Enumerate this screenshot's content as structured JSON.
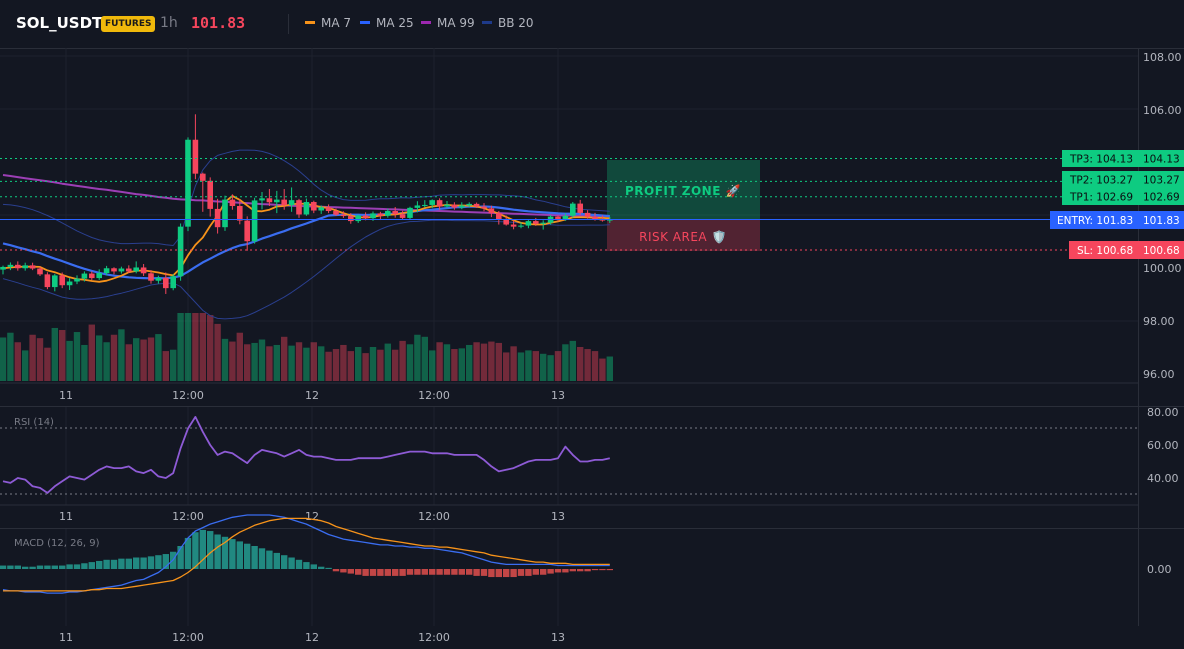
{
  "header": {
    "symbol": "SOL_USDT",
    "badge": "FUTURES",
    "timeframe": "1h",
    "price": "101.83",
    "legend": [
      {
        "label": "MA 7",
        "color": "#f7931a"
      },
      {
        "label": "MA 25",
        "color": "#2962ff"
      },
      {
        "label": "MA 99",
        "color": "#9c27b0"
      },
      {
        "label": "BB 20",
        "color": "#1e3a8a"
      }
    ]
  },
  "colors": {
    "up": "#0ecb81",
    "down": "#f6465d",
    "ma7": "#f7931a",
    "ma25": "#3a6df0",
    "ma99": "#9c3fb5",
    "bb": "#2a3f8f",
    "rsi": "#8e5bd6",
    "macd": "#3a6df0",
    "signal": "#f7931a",
    "entry": "#2962ff"
  },
  "main_chart": {
    "y_ticks": [
      "108.00",
      "106.00",
      "100.00",
      "98.00",
      "96.00"
    ],
    "x_ticks": [
      "11",
      "12:00",
      "12",
      "12:00",
      "13"
    ],
    "levels": [
      {
        "label": "TP3: 104.13",
        "value": "104.13",
        "price": 104.13,
        "color": "#0ecb81",
        "text_color": "#0b0e11"
      },
      {
        "label": "TP2: 103.27",
        "value": "103.27",
        "price": 103.27,
        "color": "#0ecb81",
        "text_color": "#0b0e11"
      },
      {
        "label": "TP1: 102.69",
        "value": "102.69",
        "price": 102.69,
        "color": "#0ecb81",
        "text_color": "#0b0e11"
      },
      {
        "label": "ENTRY: 101.83",
        "value": "101.83",
        "price": 101.83,
        "color": "#2962ff",
        "text_color": "#ffffff"
      },
      {
        "label": "SL: 100.68",
        "value": "100.68",
        "price": 100.68,
        "color": "#f6465d",
        "text_color": "#ffffff"
      }
    ],
    "profit_zone_label": "PROFIT ZONE 🚀",
    "risk_area_label": "RISK AREA 🛡️"
  },
  "rsi_panel": {
    "label": "RSI (14)",
    "y_ticks": [
      "80.00",
      "60.00",
      "40.00"
    ],
    "x_ticks": [
      "11",
      "12:00",
      "12",
      "12:00",
      "13"
    ]
  },
  "macd_panel": {
    "label": "MACD (12, 26, 9)",
    "y_ticks": [
      "0.00"
    ],
    "x_ticks": [
      "11",
      "12:00",
      "12",
      "12:00",
      "13"
    ]
  },
  "chart_data": {
    "type": "candlestick",
    "candles": [
      [
        99.94,
        100.09,
        99.76,
        100.04
      ],
      [
        100.04,
        100.21,
        99.92,
        100.12
      ],
      [
        100.12,
        100.25,
        99.9,
        99.99
      ],
      [
        99.99,
        100.2,
        99.9,
        100.1
      ],
      [
        100.1,
        100.2,
        99.92,
        99.98
      ],
      [
        99.98,
        100.05,
        99.7,
        99.76
      ],
      [
        99.76,
        99.84,
        99.2,
        99.28
      ],
      [
        99.28,
        99.78,
        99.12,
        99.72
      ],
      [
        99.72,
        99.83,
        99.24,
        99.35
      ],
      [
        99.35,
        99.62,
        99.17,
        99.49
      ],
      [
        99.49,
        99.72,
        99.39,
        99.6
      ],
      [
        99.6,
        99.87,
        99.49,
        99.79
      ],
      [
        99.79,
        99.87,
        99.54,
        99.62
      ],
      [
        99.62,
        99.95,
        99.55,
        99.81
      ],
      [
        99.81,
        100.08,
        99.72,
        99.99
      ],
      [
        99.99,
        100.03,
        99.76,
        99.87
      ],
      [
        99.87,
        100.05,
        99.79,
        99.98
      ],
      [
        99.98,
        100.1,
        99.81,
        99.87
      ],
      [
        99.87,
        100.25,
        99.8,
        100.02
      ],
      [
        100.02,
        100.15,
        99.7,
        99.8
      ],
      [
        99.8,
        99.92,
        99.41,
        99.52
      ],
      [
        99.52,
        99.71,
        99.41,
        99.63
      ],
      [
        99.63,
        99.83,
        99.02,
        99.24
      ],
      [
        99.24,
        99.77,
        99.16,
        99.69
      ],
      [
        99.69,
        101.68,
        99.52,
        101.56
      ],
      [
        101.56,
        104.93,
        101.39,
        104.84
      ],
      [
        104.84,
        105.8,
        103.35,
        103.56
      ],
      [
        103.56,
        103.6,
        102.12,
        103.29
      ],
      [
        103.29,
        103.42,
        101.94,
        102.23
      ],
      [
        102.23,
        102.61,
        101.3,
        101.54
      ],
      [
        101.54,
        102.73,
        101.4,
        102.58
      ],
      [
        102.58,
        102.78,
        102.2,
        102.34
      ],
      [
        102.34,
        102.59,
        101.65,
        101.79
      ],
      [
        101.79,
        101.95,
        100.65,
        101.01
      ],
      [
        101.01,
        102.65,
        100.92,
        102.55
      ],
      [
        102.55,
        102.87,
        102.21,
        102.63
      ],
      [
        102.63,
        102.98,
        102.34,
        102.48
      ],
      [
        102.48,
        102.91,
        102.07,
        102.58
      ],
      [
        102.58,
        102.98,
        102.2,
        102.37
      ],
      [
        102.37,
        103.04,
        102.12,
        102.56
      ],
      [
        102.56,
        102.61,
        101.89,
        102.02
      ],
      [
        102.02,
        102.62,
        101.97,
        102.49
      ],
      [
        102.49,
        102.54,
        102.07,
        102.17
      ],
      [
        102.17,
        102.36,
        102.04,
        102.29
      ],
      [
        102.29,
        102.4,
        102.07,
        102.15
      ],
      [
        102.15,
        102.24,
        101.96,
        102.01
      ],
      [
        102.01,
        102.14,
        101.89,
        101.96
      ],
      [
        101.96,
        102.07,
        101.67,
        101.77
      ],
      [
        101.77,
        102.02,
        101.7,
        101.98
      ],
      [
        101.98,
        102.1,
        101.8,
        101.88
      ],
      [
        101.88,
        102.13,
        101.78,
        102.06
      ],
      [
        102.06,
        102.12,
        101.81,
        101.97
      ],
      [
        101.97,
        102.24,
        101.9,
        102.15
      ],
      [
        102.15,
        102.3,
        101.9,
        102.03
      ],
      [
        102.03,
        102.16,
        101.82,
        101.89
      ],
      [
        101.89,
        102.31,
        101.83,
        102.27
      ],
      [
        102.27,
        102.52,
        102.1,
        102.36
      ],
      [
        102.36,
        102.56,
        102.29,
        102.38
      ],
      [
        102.38,
        102.59,
        102.26,
        102.56
      ],
      [
        102.56,
        102.63,
        102.2,
        102.32
      ],
      [
        102.32,
        102.53,
        102.27,
        102.39
      ],
      [
        102.39,
        102.48,
        102.2,
        102.28
      ],
      [
        102.28,
        102.48,
        102.22,
        102.36
      ],
      [
        102.36,
        102.48,
        102.29,
        102.42
      ],
      [
        102.42,
        102.47,
        102.27,
        102.32
      ],
      [
        102.32,
        102.45,
        102.14,
        102.25
      ],
      [
        102.25,
        102.35,
        101.92,
        102.07
      ],
      [
        102.07,
        102.15,
        101.64,
        101.83
      ],
      [
        101.83,
        101.98,
        101.6,
        101.64
      ],
      [
        101.64,
        101.8,
        101.46,
        101.56
      ],
      [
        101.56,
        101.72,
        101.5,
        101.6
      ],
      [
        101.6,
        101.83,
        101.5,
        101.77
      ],
      [
        101.77,
        101.89,
        101.59,
        101.67
      ],
      [
        101.67,
        101.8,
        101.45,
        101.71
      ],
      [
        101.71,
        102.0,
        101.64,
        101.94
      ],
      [
        101.94,
        101.98,
        101.75,
        101.85
      ],
      [
        101.85,
        102.06,
        101.78,
        101.97
      ],
      [
        101.97,
        102.49,
        101.9,
        102.43
      ],
      [
        102.43,
        102.57,
        102.0,
        102.08
      ],
      [
        102.08,
        102.18,
        101.86,
        101.93
      ],
      [
        101.93,
        102.08,
        101.79,
        101.84
      ],
      [
        101.84,
        101.98,
        101.75,
        101.79
      ],
      [
        101.79,
        101.93,
        101.7,
        101.83
      ]
    ],
    "volumes": [
      64,
      71,
      57,
      45,
      68,
      63,
      49,
      78,
      75,
      59,
      72,
      53,
      83,
      67,
      57,
      68,
      76,
      54,
      63,
      61,
      64,
      69,
      44,
      46,
      100,
      100,
      100,
      100,
      97,
      84,
      62,
      58,
      71,
      54,
      56,
      61,
      51,
      53,
      65,
      52,
      57,
      49,
      57,
      51,
      43,
      47,
      53,
      44,
      50,
      41,
      50,
      46,
      55,
      46,
      59,
      54,
      68,
      65,
      45,
      57,
      54,
      47,
      48,
      53,
      57,
      55,
      58,
      56,
      42,
      51,
      42,
      45,
      44,
      40,
      38,
      44,
      54,
      59,
      50,
      47,
      44,
      33,
      36
    ],
    "ma7": [
      99.99,
      100.02,
      100.04,
      100.05,
      100.05,
      100.04,
      99.91,
      99.84,
      99.74,
      99.65,
      99.58,
      99.56,
      99.51,
      99.48,
      99.52,
      99.61,
      99.71,
      99.84,
      99.89,
      99.91,
      99.87,
      99.83,
      99.77,
      99.72,
      100.0,
      100.48,
      100.87,
      101.15,
      101.59,
      101.98,
      102.49,
      102.72,
      102.57,
      102.36,
      102.15,
      102.14,
      102.2,
      102.32,
      102.34,
      102.4,
      102.43,
      102.42,
      102.37,
      102.29,
      102.27,
      102.17,
      102.07,
      101.98,
      101.92,
      101.9,
      101.93,
      101.98,
      102.01,
      102.02,
      102.07,
      102.12,
      102.17,
      102.26,
      102.32,
      102.35,
      102.38,
      102.36,
      102.36,
      102.35,
      102.32,
      102.26,
      102.15,
      102.05,
      101.93,
      101.8,
      101.7,
      101.66,
      101.64,
      101.64,
      101.71,
      101.76,
      101.83,
      101.91,
      101.92,
      101.91,
      101.89,
      101.89,
      101.87
    ],
    "ma25": [
      100.93,
      100.86,
      100.78,
      100.71,
      100.63,
      100.56,
      100.45,
      100.35,
      100.26,
      100.16,
      100.06,
      99.97,
      99.89,
      99.82,
      99.76,
      99.71,
      99.68,
      99.65,
      99.63,
      99.62,
      99.61,
      99.62,
      99.61,
      99.64,
      99.7,
      99.86,
      100.04,
      100.21,
      100.35,
      100.5,
      100.63,
      100.75,
      100.85,
      100.9,
      101.0,
      101.11,
      101.2,
      101.3,
      101.39,
      101.5,
      101.59,
      101.68,
      101.78,
      101.88,
      101.98,
      102.0,
      102.01,
      102.01,
      102.01,
      102.0,
      102.01,
      102.02,
      102.04,
      102.04,
      102.07,
      102.11,
      102.15,
      102.18,
      102.2,
      102.23,
      102.26,
      102.29,
      102.3,
      102.32,
      102.31,
      102.32,
      102.31,
      102.28,
      102.24,
      102.2,
      102.17,
      102.14,
      102.12,
      102.1,
      102.08,
      102.06,
      102.05,
      102.05,
      102.04,
      102.02,
      102.0,
      101.98,
      101.96
    ],
    "ma99": [
      103.51,
      103.47,
      103.43,
      103.39,
      103.35,
      103.31,
      103.27,
      103.23,
      103.18,
      103.14,
      103.1,
      103.06,
      103.02,
      102.98,
      102.95,
      102.91,
      102.87,
      102.83,
      102.79,
      102.76,
      102.72,
      102.68,
      102.65,
      102.61,
      102.59,
      102.58,
      102.56,
      102.55,
      102.53,
      102.51,
      102.5,
      102.48,
      102.46,
      102.45,
      102.43,
      102.41,
      102.4,
      102.38,
      102.37,
      102.35,
      102.34,
      102.33,
      102.32,
      102.31,
      102.3,
      102.29,
      102.28,
      102.27,
      102.26,
      102.25,
      102.24,
      102.23,
      102.22,
      102.21,
      102.2,
      102.19,
      102.18,
      102.17,
      102.16,
      102.15,
      102.14,
      102.13,
      102.12,
      102.11,
      102.1,
      102.09,
      102.08,
      102.07,
      102.06,
      102.05,
      102.04,
      102.03,
      102.02,
      102.01,
      102.0,
      101.99,
      101.98,
      101.98,
      101.97,
      101.96,
      101.96,
      101.95,
      101.95
    ],
    "bb_upper": [
      102.4,
      102.38,
      102.34,
      102.28,
      102.2,
      102.1,
      101.98,
      101.85,
      101.7,
      101.55,
      101.4,
      101.27,
      101.15,
      101.06,
      101.0,
      100.95,
      100.92,
      100.92,
      100.93,
      100.94,
      100.94,
      100.92,
      100.88,
      100.85,
      101.2,
      102.2,
      103.1,
      103.7,
      104.05,
      104.25,
      104.33,
      104.4,
      104.45,
      104.45,
      104.44,
      104.4,
      104.32,
      104.2,
      104.05,
      103.87,
      103.66,
      103.42,
      103.16,
      102.94,
      102.77,
      102.66,
      102.58,
      102.55,
      102.55,
      102.56,
      102.59,
      102.61,
      102.61,
      102.63,
      102.65,
      102.64,
      102.67,
      102.69,
      102.71,
      102.75,
      102.76,
      102.77,
      102.76,
      102.77,
      102.77,
      102.77,
      102.76,
      102.76,
      102.74,
      102.73,
      102.7,
      102.65,
      102.57,
      102.52,
      102.45,
      102.38,
      102.31,
      102.26,
      102.22,
      102.2,
      102.18,
      102.16,
      102.14
    ],
    "bb_lower": [
      99.6,
      99.52,
      99.44,
      99.35,
      99.27,
      99.2,
      99.1,
      99.0,
      98.9,
      98.85,
      98.82,
      98.82,
      98.84,
      98.87,
      98.92,
      98.99,
      99.05,
      99.12,
      99.2,
      99.28,
      99.36,
      99.4,
      99.42,
      99.43,
      99.3,
      99.0,
      98.7,
      98.4,
      98.2,
      98.1,
      98.08,
      98.1,
      98.13,
      98.2,
      98.32,
      98.46,
      98.6,
      98.75,
      98.9,
      99.08,
      99.27,
      99.47,
      99.68,
      99.9,
      100.13,
      100.36,
      100.58,
      100.8,
      100.99,
      101.17,
      101.32,
      101.46,
      101.57,
      101.65,
      101.7,
      101.75,
      101.76,
      101.78,
      101.8,
      101.8,
      101.8,
      101.79,
      101.79,
      101.79,
      101.78,
      101.78,
      101.77,
      101.75,
      101.74,
      101.72,
      101.7,
      101.67,
      101.65,
      101.64,
      101.63,
      101.61,
      101.61,
      101.61,
      101.61,
      101.62,
      101.62,
      101.62,
      101.63
    ],
    "rsi": [
      38,
      37,
      40,
      39,
      35,
      34,
      31,
      35,
      38,
      41,
      40,
      39,
      42,
      45,
      47,
      46,
      46,
      47,
      44,
      43,
      45,
      41,
      40,
      43,
      58,
      70,
      77,
      68,
      60,
      54,
      56,
      55,
      52,
      49,
      54,
      57,
      56,
      55,
      53,
      55,
      57,
      54,
      53,
      53,
      52,
      51,
      51,
      51,
      52,
      52,
      52,
      52,
      53,
      54,
      55,
      56,
      56,
      56,
      55,
      55,
      55,
      54,
      54,
      54,
      54,
      51,
      47,
      44,
      45,
      46,
      48,
      50,
      51,
      51,
      51,
      52,
      59,
      54,
      50,
      50,
      51,
      51,
      52
    ],
    "macd": [
      -0.18,
      -0.19,
      -0.19,
      -0.2,
      -0.2,
      -0.2,
      -0.21,
      -0.21,
      -0.21,
      -0.2,
      -0.2,
      -0.19,
      -0.18,
      -0.17,
      -0.16,
      -0.15,
      -0.14,
      -0.12,
      -0.1,
      -0.09,
      -0.06,
      -0.03,
      0.02,
      0.08,
      0.18,
      0.27,
      0.33,
      0.36,
      0.39,
      0.41,
      0.43,
      0.45,
      0.46,
      0.47,
      0.47,
      0.47,
      0.47,
      0.46,
      0.45,
      0.43,
      0.41,
      0.39,
      0.36,
      0.33,
      0.3,
      0.28,
      0.26,
      0.25,
      0.24,
      0.23,
      0.22,
      0.21,
      0.21,
      0.2,
      0.2,
      0.19,
      0.19,
      0.18,
      0.18,
      0.17,
      0.16,
      0.15,
      0.14,
      0.12,
      0.1,
      0.08,
      0.06,
      0.05,
      0.04,
      0.04,
      0.04,
      0.04,
      0.04,
      0.04,
      0.04,
      0.03,
      0.03,
      0.03,
      0.03,
      0.03,
      0.03,
      0.03,
      0.03
    ],
    "signal": [
      -0.19,
      -0.19,
      -0.19,
      -0.19,
      -0.19,
      -0.19,
      -0.19,
      -0.19,
      -0.19,
      -0.19,
      -0.19,
      -0.19,
      -0.18,
      -0.18,
      -0.17,
      -0.17,
      -0.17,
      -0.16,
      -0.15,
      -0.14,
      -0.13,
      -0.12,
      -0.11,
      -0.1,
      -0.07,
      -0.03,
      0.02,
      0.08,
      0.14,
      0.19,
      0.23,
      0.28,
      0.32,
      0.35,
      0.38,
      0.4,
      0.42,
      0.43,
      0.44,
      0.44,
      0.44,
      0.44,
      0.43,
      0.42,
      0.4,
      0.37,
      0.35,
      0.33,
      0.31,
      0.29,
      0.27,
      0.26,
      0.25,
      0.24,
      0.23,
      0.22,
      0.21,
      0.2,
      0.2,
      0.19,
      0.19,
      0.18,
      0.17,
      0.16,
      0.15,
      0.14,
      0.12,
      0.11,
      0.1,
      0.09,
      0.08,
      0.07,
      0.06,
      0.06,
      0.05,
      0.05,
      0.05,
      0.04,
      0.04,
      0.04,
      0.04,
      0.04,
      0.04
    ],
    "hist": [
      0.03,
      0.03,
      0.03,
      0.02,
      0.02,
      0.03,
      0.03,
      0.03,
      0.03,
      0.04,
      0.04,
      0.05,
      0.06,
      0.07,
      0.08,
      0.08,
      0.09,
      0.09,
      0.1,
      0.1,
      0.11,
      0.12,
      0.13,
      0.15,
      0.2,
      0.27,
      0.32,
      0.34,
      0.33,
      0.3,
      0.28,
      0.26,
      0.24,
      0.22,
      0.2,
      0.18,
      0.16,
      0.14,
      0.12,
      0.1,
      0.08,
      0.06,
      0.04,
      0.02,
      0.01,
      -0.02,
      -0.03,
      -0.04,
      -0.05,
      -0.06,
      -0.06,
      -0.06,
      -0.06,
      -0.06,
      -0.06,
      -0.05,
      -0.05,
      -0.05,
      -0.05,
      -0.05,
      -0.05,
      -0.05,
      -0.05,
      -0.05,
      -0.06,
      -0.06,
      -0.07,
      -0.07,
      -0.07,
      -0.07,
      -0.06,
      -0.06,
      -0.05,
      -0.05,
      -0.04,
      -0.03,
      -0.03,
      -0.02,
      -0.02,
      -0.02,
      -0.01,
      -0.01,
      -0.01
    ]
  }
}
